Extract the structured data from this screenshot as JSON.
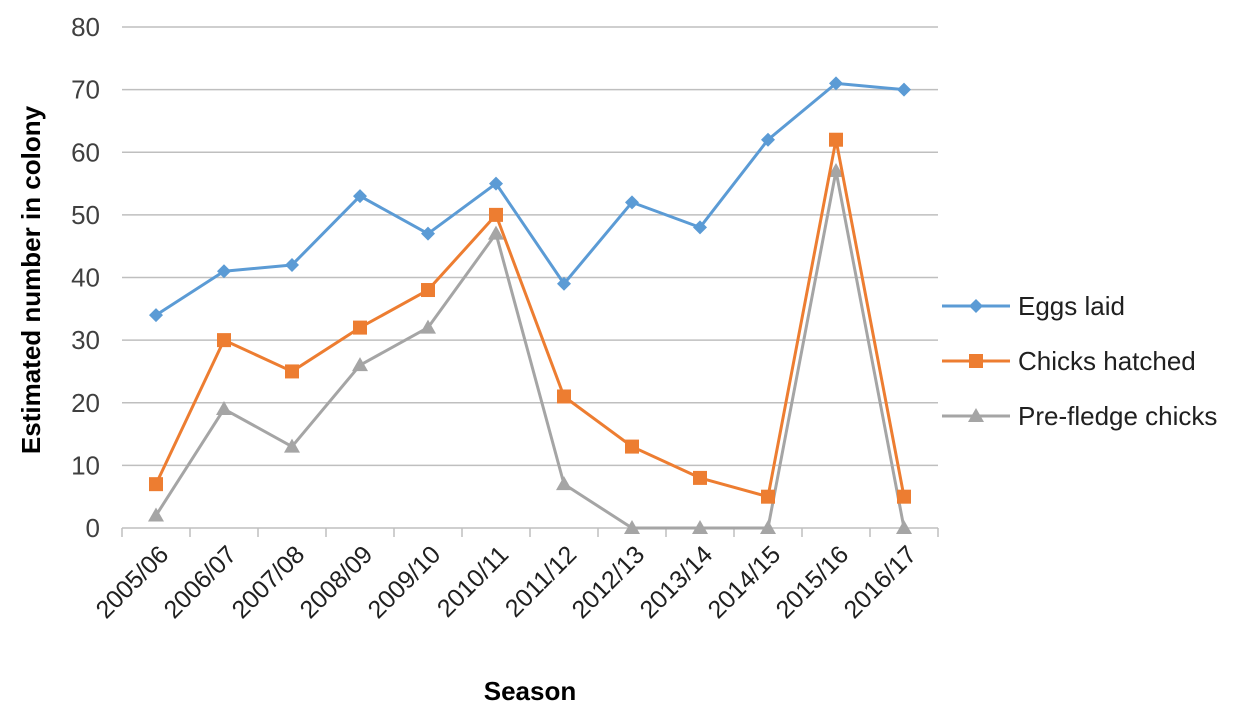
{
  "chart_data": {
    "type": "line",
    "title": "",
    "xlabel": "Season",
    "ylabel": "Estimated number in colony",
    "ylim": [
      0,
      80
    ],
    "yticks": [
      0,
      10,
      20,
      30,
      40,
      50,
      60,
      70,
      80
    ],
    "grid": "horizontal",
    "legend_position": "right",
    "categories": [
      "2005/06",
      "2006/07",
      "2007/08",
      "2008/09",
      "2009/10",
      "2010/11",
      "2011/12",
      "2012/13",
      "2013/14",
      "2014/15",
      "2015/16",
      "2016/17"
    ],
    "series": [
      {
        "name": "Eggs laid",
        "color": "#5b9bd5",
        "marker": "diamond",
        "values": [
          34,
          41,
          42,
          53,
          47,
          55,
          39,
          52,
          48,
          62,
          71,
          70
        ]
      },
      {
        "name": "Chicks hatched",
        "color": "#ed7d31",
        "marker": "square",
        "values": [
          7,
          30,
          25,
          32,
          38,
          50,
          21,
          13,
          8,
          5,
          62,
          5
        ]
      },
      {
        "name": "Pre-fledge chicks",
        "color": "#a5a5a5",
        "marker": "triangle",
        "values": [
          2,
          19,
          13,
          26,
          32,
          47,
          7,
          0,
          0,
          0,
          57,
          0
        ]
      }
    ]
  }
}
